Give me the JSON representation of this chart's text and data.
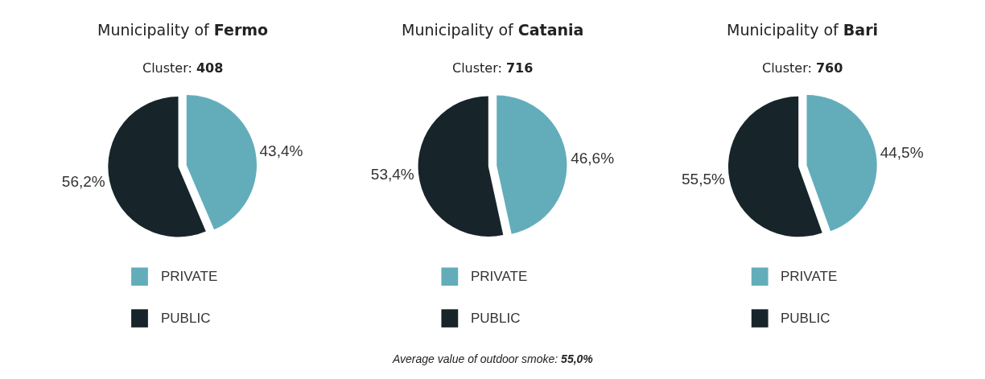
{
  "chart_data": [
    {
      "type": "pie",
      "title": "Municipality of Fermo",
      "subtitle": "Cluster: 408",
      "categories": [
        "PRIVATE",
        "PUBLIC"
      ],
      "values": [
        43.4,
        56.2
      ],
      "value_labels": [
        "43,4%",
        "56,2%"
      ],
      "colors": [
        "#63adbb",
        "#17252b"
      ],
      "legend": "bottom"
    },
    {
      "type": "pie",
      "title": "Municipality of Catania",
      "subtitle": "Cluster: 716",
      "categories": [
        "PRIVATE",
        "PUBLIC"
      ],
      "values": [
        46.6,
        53.4
      ],
      "value_labels": [
        "46,6%",
        "53,4%"
      ],
      "colors": [
        "#63adbb",
        "#17252b"
      ],
      "legend": "bottom",
      "annotations": [
        "Average value of outdoor smoke: 55,0%"
      ]
    },
    {
      "type": "pie",
      "title": "Municipality of Bari",
      "subtitle": "Cluster: 760",
      "categories": [
        "PRIVATE",
        "PUBLIC"
      ],
      "values": [
        44.5,
        55.5
      ],
      "value_labels": [
        "44,5%",
        "55,5%"
      ],
      "colors": [
        "#63adbb",
        "#17252b"
      ],
      "legend": "bottom"
    }
  ]
}
